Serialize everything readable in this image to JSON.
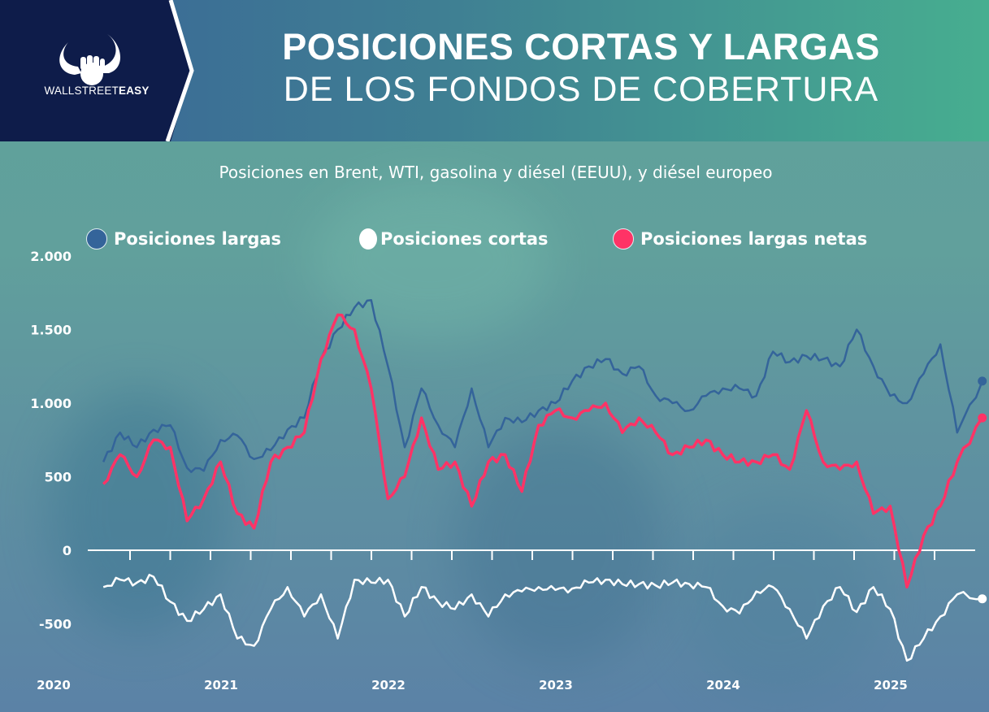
{
  "brand": {
    "name_light": "WALLSTREET",
    "name_bold": "EASY"
  },
  "header": {
    "title_line1": "POSICIONES CORTAS Y LARGAS",
    "title_line2": "DE LOS FONDOS DE COBERTURA"
  },
  "colors": {
    "longs": "#34649a",
    "shorts": "#ffffff",
    "net": "#ff3366",
    "logo_panel": "#0e1c4a"
  },
  "chart_data": {
    "type": "line",
    "title": "POSICIONES CORTAS Y LARGAS DE LOS FONDOS DE COBERTURA",
    "subtitle": "Posiciones en Brent, WTI, gasolina y diésel (EEUU), y diésel europeo",
    "xlabel": "",
    "ylabel": "",
    "ylim": [
      -500,
      2000
    ],
    "xlim": [
      2020,
      2025.6
    ],
    "yticks": [
      2000,
      1500,
      1000,
      500,
      0,
      -500
    ],
    "ytick_labels": [
      "2.000",
      "1.500",
      "1.000",
      "500",
      "0",
      "-500"
    ],
    "xticks": [
      2020,
      2021,
      2022,
      2023,
      2024,
      2025
    ],
    "xtick_labels": [
      "2020",
      "2021",
      "2022",
      "2023",
      "2024",
      "2025"
    ],
    "grid": false,
    "legend": "top",
    "x": [
      2020.2,
      2020.3,
      2020.4,
      2020.5,
      2020.6,
      2020.7,
      2020.8,
      2020.9,
      2021.0,
      2021.1,
      2021.2,
      2021.3,
      2021.4,
      2021.5,
      2021.6,
      2021.7,
      2021.8,
      2021.9,
      2022.0,
      2022.1,
      2022.2,
      2022.3,
      2022.4,
      2022.5,
      2022.6,
      2022.7,
      2022.8,
      2022.9,
      2023.0,
      2023.1,
      2023.2,
      2023.3,
      2023.4,
      2023.5,
      2023.6,
      2023.7,
      2023.8,
      2023.9,
      2024.0,
      2024.1,
      2024.2,
      2024.3,
      2024.4,
      2024.5,
      2024.6,
      2024.7,
      2024.8,
      2024.9,
      2025.0,
      2025.1,
      2025.2,
      2025.3,
      2025.45
    ],
    "series": [
      {
        "name": "Posiciones largas",
        "values": [
          600,
          800,
          700,
          820,
          850,
          560,
          540,
          750,
          780,
          620,
          680,
          820,
          900,
          1300,
          1500,
          1650,
          1700,
          1250,
          700,
          1100,
          850,
          700,
          1100,
          700,
          900,
          870,
          950,
          1000,
          1150,
          1250,
          1300,
          1200,
          1250,
          1050,
          1000,
          950,
          1050,
          1100,
          1100,
          1050,
          1350,
          1280,
          1320,
          1300,
          1250,
          1500,
          1250,
          1050,
          1000,
          1200,
          1400,
          800,
          1150
        ]
      },
      {
        "name": "Posiciones cortas",
        "values": [
          -250,
          -200,
          -220,
          -180,
          -350,
          -480,
          -400,
          -300,
          -600,
          -650,
          -400,
          -250,
          -450,
          -300,
          -600,
          -200,
          -220,
          -200,
          -450,
          -250,
          -350,
          -400,
          -300,
          -450,
          -300,
          -280,
          -250,
          -270,
          -260,
          -220,
          -200,
          -230,
          -230,
          -240,
          -220,
          -230,
          -250,
          -380,
          -430,
          -280,
          -250,
          -400,
          -600,
          -380,
          -250,
          -420,
          -250,
          -400,
          -750,
          -600,
          -450,
          -300,
          -330
        ]
      },
      {
        "name": "Posiciones largas netas",
        "values": [
          450,
          650,
          500,
          750,
          700,
          200,
          350,
          600,
          250,
          150,
          600,
          700,
          800,
          1300,
          1600,
          1500,
          1100,
          350,
          500,
          900,
          550,
          600,
          300,
          600,
          650,
          400,
          850,
          950,
          900,
          950,
          1000,
          800,
          900,
          800,
          650,
          700,
          750,
          650,
          600,
          600,
          650,
          550,
          950,
          600,
          550,
          600,
          250,
          300,
          -250,
          100,
          300,
          600,
          900
        ]
      }
    ]
  }
}
